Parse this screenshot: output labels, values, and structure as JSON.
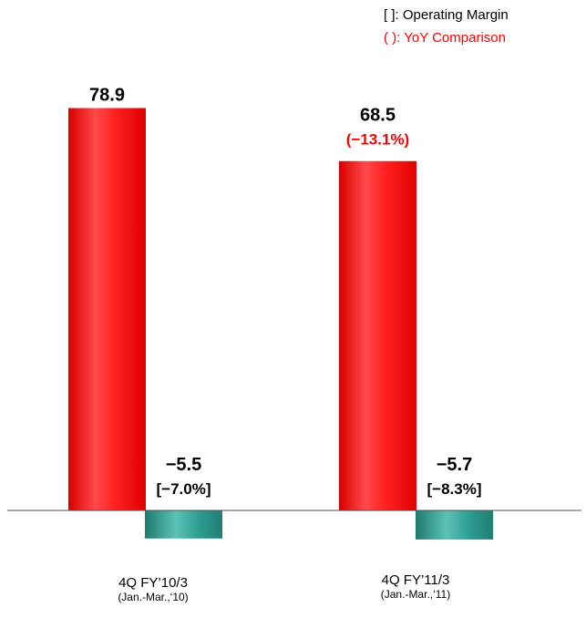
{
  "legend": {
    "margin_note": "[ ]: Operating Margin",
    "yoy_note": "( ): YoY Comparison"
  },
  "chart_data": {
    "type": "bar",
    "categories": [
      {
        "label": "4Q FY’10/3",
        "sublabel": "(Jan.-Mar.,‘10)"
      },
      {
        "label": "4Q FY’11/3",
        "sublabel": "(Jan.-Mar.,‘11)"
      }
    ],
    "series": [
      {
        "values": [
          78.9,
          68.5
        ],
        "color": "#ff2a2a",
        "labels": [
          "78.9",
          "68.5"
        ],
        "secondary_labels": [
          "",
          "(−13.1%)"
        ]
      },
      {
        "values": [
          -5.5,
          -5.7
        ],
        "color": "#2a9a8e",
        "labels": [
          "−5.5",
          "−5.7"
        ],
        "secondary_labels": [
          "[−7.0%]",
          "[−8.3%]"
        ]
      }
    ],
    "colors": {
      "label": "#000000",
      "yoy": "#ff0000",
      "axis": "#555555"
    },
    "ylim": [
      -9,
      90
    ]
  }
}
